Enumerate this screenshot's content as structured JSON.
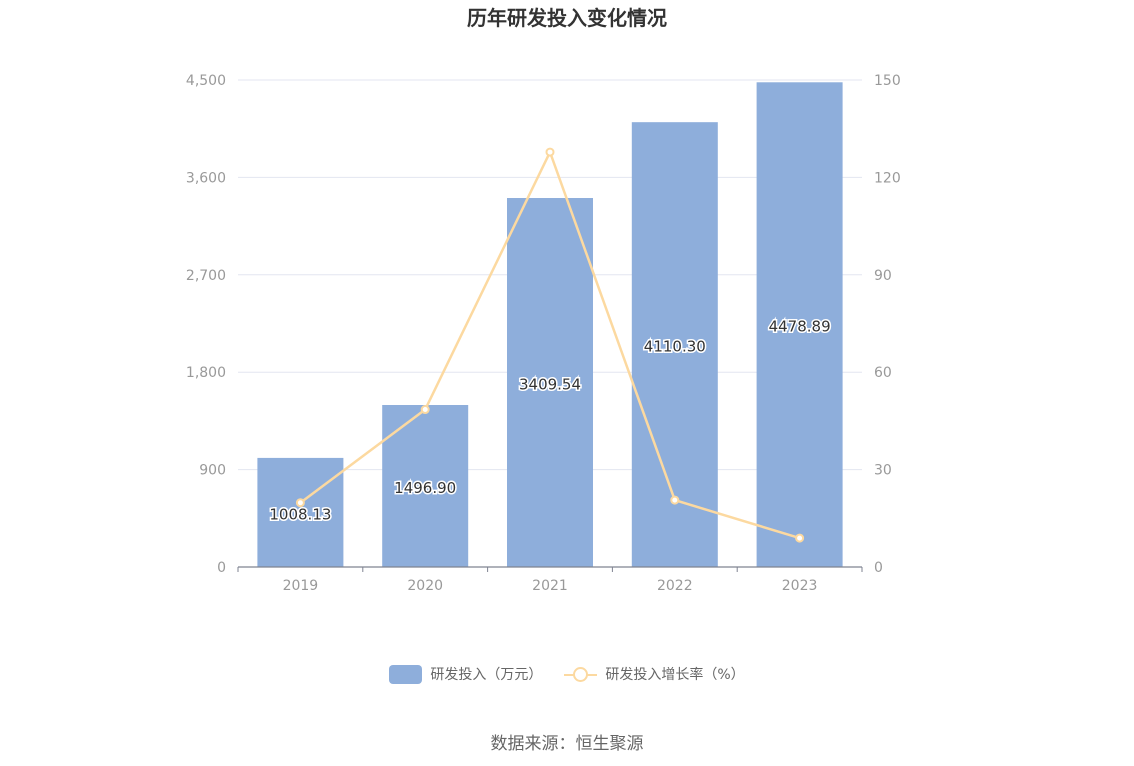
{
  "chart_data": {
    "type": "bar",
    "title": "历年研发投入变化情况",
    "categories": [
      "2019",
      "2020",
      "2021",
      "2022",
      "2023"
    ],
    "series": [
      {
        "name": "研发投入（万元）",
        "type": "bar",
        "axis": "left",
        "values": [
          1008.13,
          1496.9,
          3409.54,
          4110.3,
          4478.89
        ],
        "labels": [
          "1008.13",
          "1496.90",
          "3409.54",
          "4110.30",
          "4478.89"
        ],
        "color": "#8eaedb"
      },
      {
        "name": "研发投入增长率（%）",
        "type": "line",
        "axis": "right",
        "values": [
          19.8,
          48.5,
          127.8,
          20.6,
          8.9
        ],
        "color": "#fcd9a0"
      }
    ],
    "y_left": {
      "ylim": [
        0,
        4500
      ],
      "ticks": [
        "0",
        "900",
        "1,800",
        "2,700",
        "3,600",
        "4,500"
      ],
      "tick_values": [
        0,
        900,
        1800,
        2700,
        3600,
        4500
      ]
    },
    "y_right": {
      "ylim": [
        0,
        150
      ],
      "ticks": [
        "0",
        "30",
        "60",
        "90",
        "120",
        "150"
      ],
      "tick_values": [
        0,
        30,
        60,
        90,
        120,
        150
      ]
    },
    "grid": true,
    "legend_position": "bottom"
  },
  "source_text": "数据来源：恒生聚源"
}
